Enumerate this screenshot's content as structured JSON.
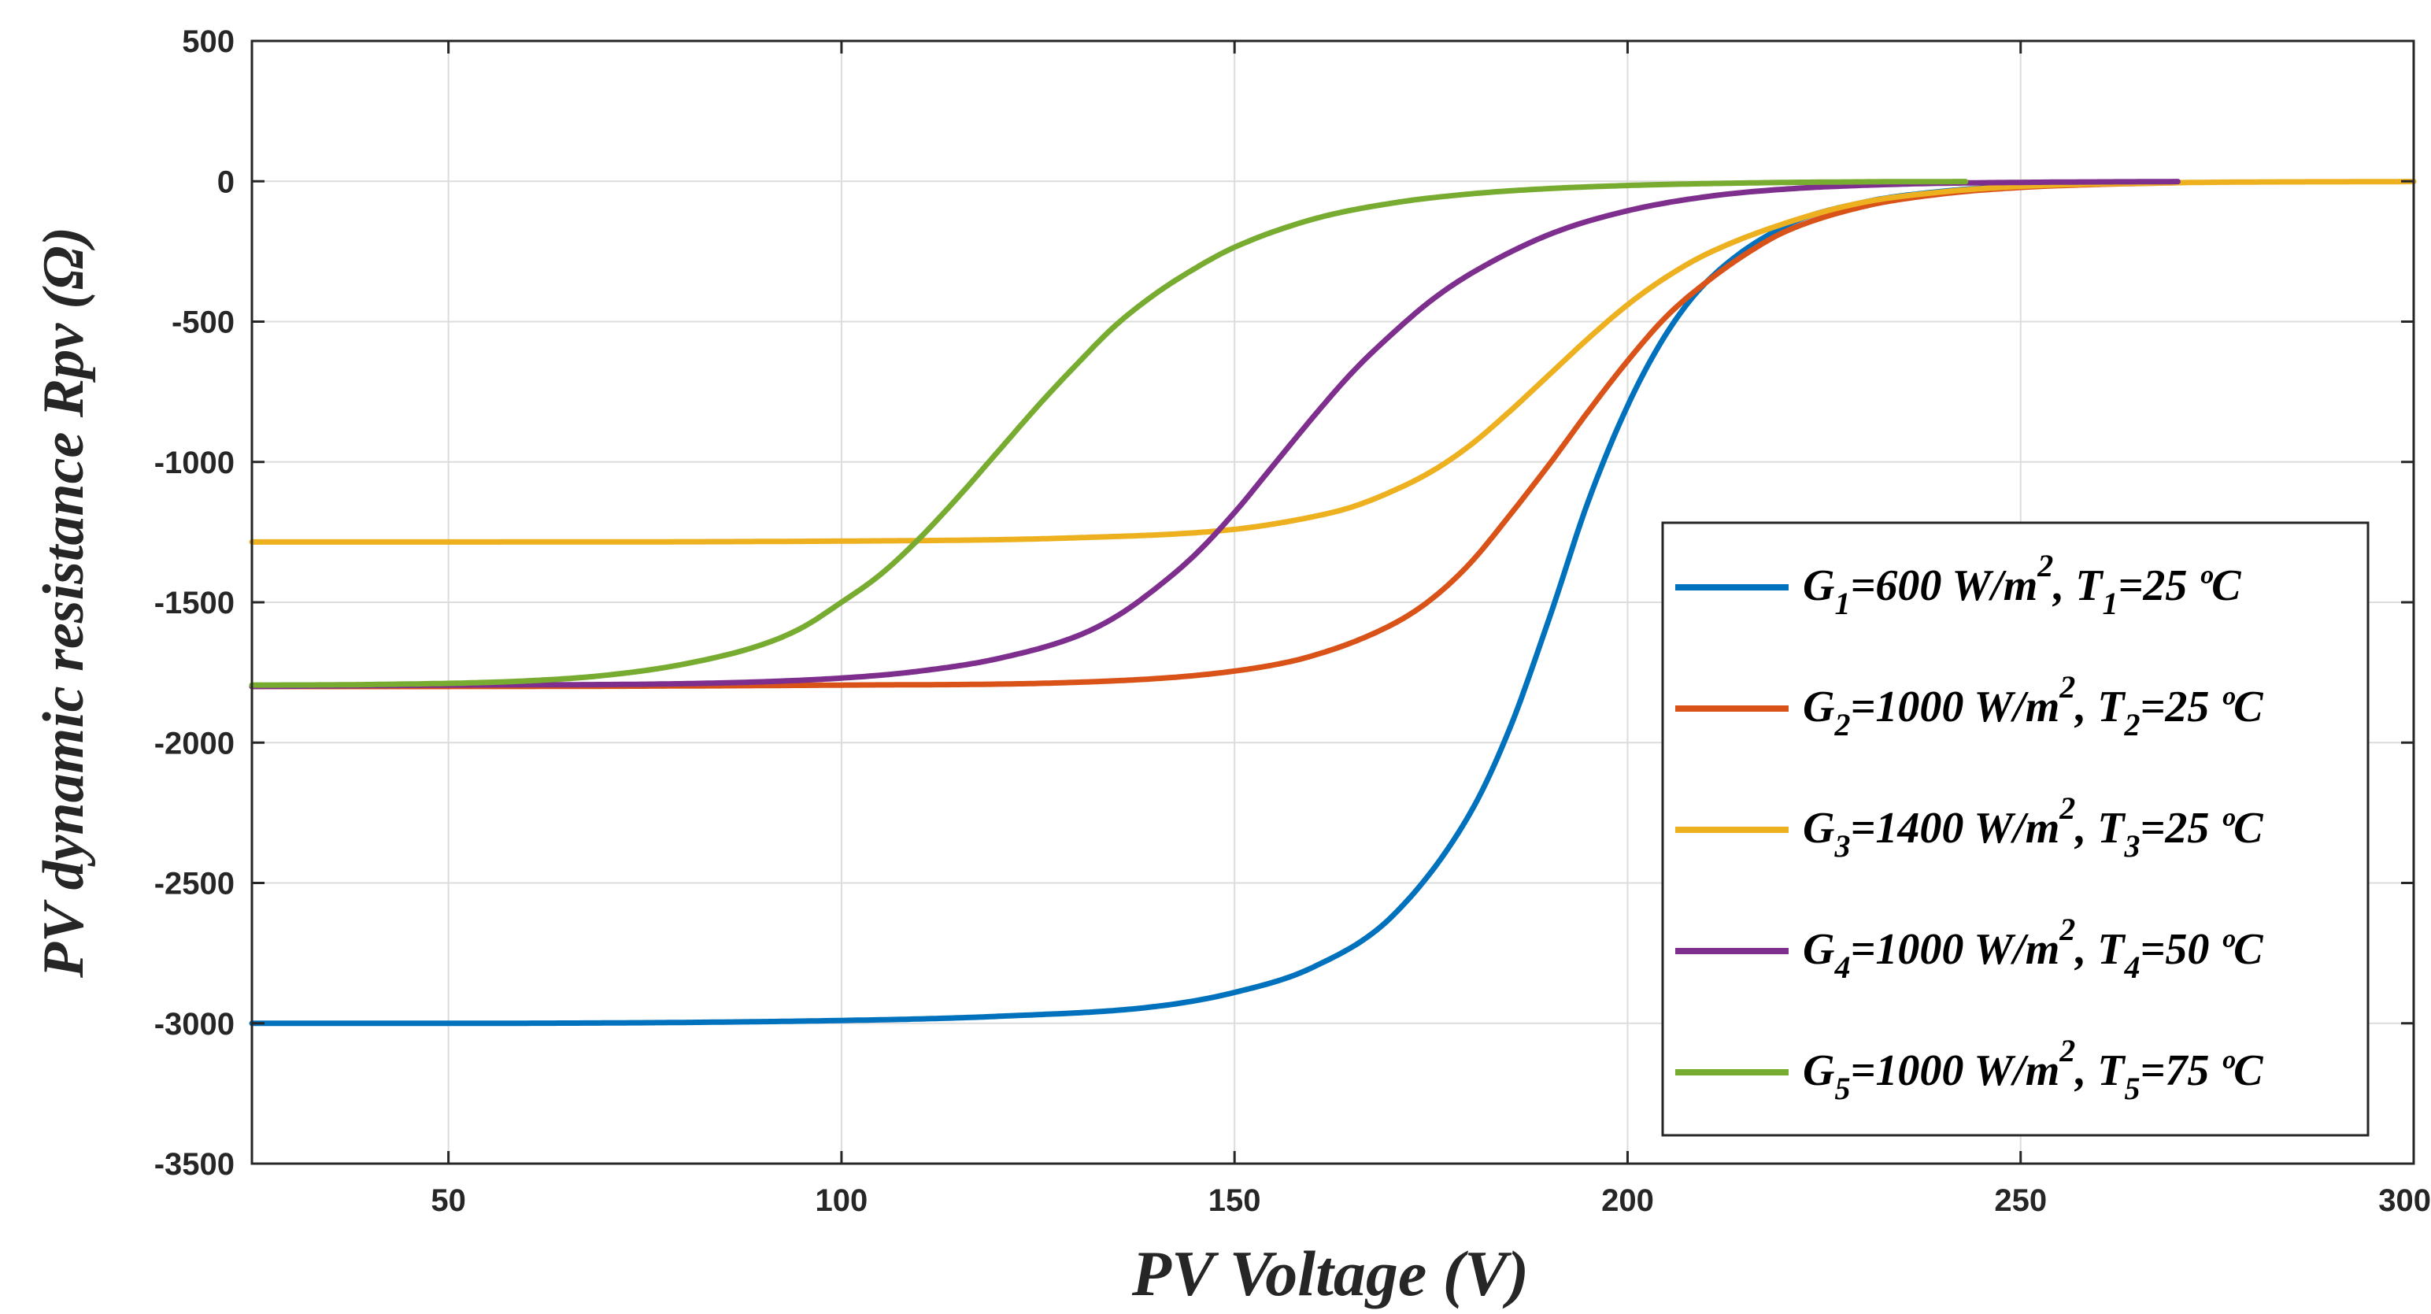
{
  "chart_data": {
    "type": "line",
    "title": "",
    "xlabel": "PV Voltage (V)",
    "ylabel": "PV dynamic resistance Rpv (Ω)",
    "xlim": [
      25,
      300
    ],
    "ylim": [
      -3500,
      500
    ],
    "xticks": [
      50,
      100,
      150,
      200,
      250,
      300
    ],
    "yticks": [
      500,
      0,
      -500,
      -1000,
      -1500,
      -2000,
      -2500,
      -3000,
      -3500
    ],
    "grid": true,
    "legend_position": "right",
    "series": [
      {
        "name": "G1=600 W/m2, T1=25 ºC",
        "label": {
          "g": "G",
          "gsub": "1",
          "gval": "=600 W/m",
          "sup": "2",
          "t": ", T",
          "tsub": "1",
          "tval": "=25 ºC"
        },
        "color": "#0072BD",
        "x_end": 270,
        "x": [
          25,
          50,
          100,
          120,
          140,
          150,
          160,
          170,
          180,
          185,
          190,
          195,
          200,
          205,
          210,
          220,
          230,
          240,
          250,
          260,
          270
        ],
        "y": [
          -3000,
          -3000,
          -2990,
          -2975,
          -2940,
          -2890,
          -2800,
          -2620,
          -2250,
          -1950,
          -1560,
          -1140,
          -800,
          -540,
          -360,
          -160,
          -75,
          -36,
          -17,
          -8,
          -4
        ]
      },
      {
        "name": "G2=1000 W/m2, T2=25 ºC",
        "label": {
          "g": "G",
          "gsub": "2",
          "gval": "=1000 W/m",
          "sup": "2",
          "t": ", T",
          "tsub": "2",
          "tval": "=25 ºC"
        },
        "color": "#D95319",
        "x_end": 270,
        "x": [
          25,
          50,
          100,
          130,
          150,
          160,
          170,
          175,
          180,
          185,
          190,
          195,
          200,
          205,
          210,
          215,
          220,
          230,
          240,
          250,
          260,
          270
        ],
        "y": [
          -1800,
          -1800,
          -1795,
          -1785,
          -1745,
          -1690,
          -1580,
          -1490,
          -1360,
          -1190,
          -1010,
          -820,
          -640,
          -480,
          -360,
          -260,
          -180,
          -90,
          -45,
          -22,
          -11,
          -5
        ]
      },
      {
        "name": "G3=1400 W/m2, T3=25 ºC",
        "label": {
          "g": "G",
          "gsub": "3",
          "gval": "=1400 W/m",
          "sup": "2",
          "t": ", T",
          "tsub": "3",
          "tval": "=25 ºC"
        },
        "color": "#EDB120",
        "x_end": 300,
        "x": [
          25,
          50,
          100,
          130,
          150,
          160,
          165,
          170,
          175,
          180,
          185,
          190,
          195,
          200,
          205,
          210,
          220,
          230,
          240,
          250,
          270,
          300
        ],
        "y": [
          -1285,
          -1285,
          -1282,
          -1270,
          -1240,
          -1195,
          -1160,
          -1105,
          -1035,
          -940,
          -820,
          -690,
          -560,
          -440,
          -340,
          -260,
          -150,
          -75,
          -38,
          -18,
          -5,
          -1
        ]
      },
      {
        "name": "G4=1000 W/m2, T4=50 ºC",
        "label": {
          "g": "G",
          "gsub": "4",
          "gval": "=1000 W/m",
          "sup": "2",
          "t": ", T",
          "tsub": "4",
          "tval": "=50 ºC"
        },
        "color": "#7E2F8E",
        "x_end": 270,
        "x": [
          25,
          50,
          80,
          100,
          110,
          120,
          130,
          135,
          140,
          145,
          150,
          155,
          160,
          165,
          170,
          175,
          180,
          190,
          200,
          210,
          220,
          235,
          250,
          270
        ],
        "y": [
          -1800,
          -1795,
          -1790,
          -1770,
          -1745,
          -1700,
          -1620,
          -1550,
          -1450,
          -1330,
          -1180,
          -1010,
          -840,
          -680,
          -545,
          -425,
          -330,
          -190,
          -105,
          -55,
          -28,
          -10,
          -4,
          -1
        ]
      },
      {
        "name": "G5=1000 W/m2, T5=75 ºC",
        "label": {
          "g": "G",
          "gsub": "5",
          "gval": "=1000 W/m",
          "sup": "2",
          "t": ", T",
          "tsub": "5",
          "tval": "=75 ºC"
        },
        "color": "#77AC30",
        "x_end": 243,
        "x": [
          25,
          40,
          60,
          70,
          80,
          90,
          95,
          100,
          105,
          110,
          115,
          120,
          125,
          130,
          135,
          140,
          145,
          150,
          160,
          170,
          180,
          190,
          200,
          215,
          230,
          243
        ],
        "y": [
          -1795,
          -1793,
          -1780,
          -1760,
          -1720,
          -1650,
          -1590,
          -1500,
          -1400,
          -1270,
          -1120,
          -960,
          -800,
          -650,
          -510,
          -400,
          -310,
          -235,
          -135,
          -78,
          -45,
          -26,
          -15,
          -6,
          -2,
          -1
        ]
      }
    ]
  }
}
